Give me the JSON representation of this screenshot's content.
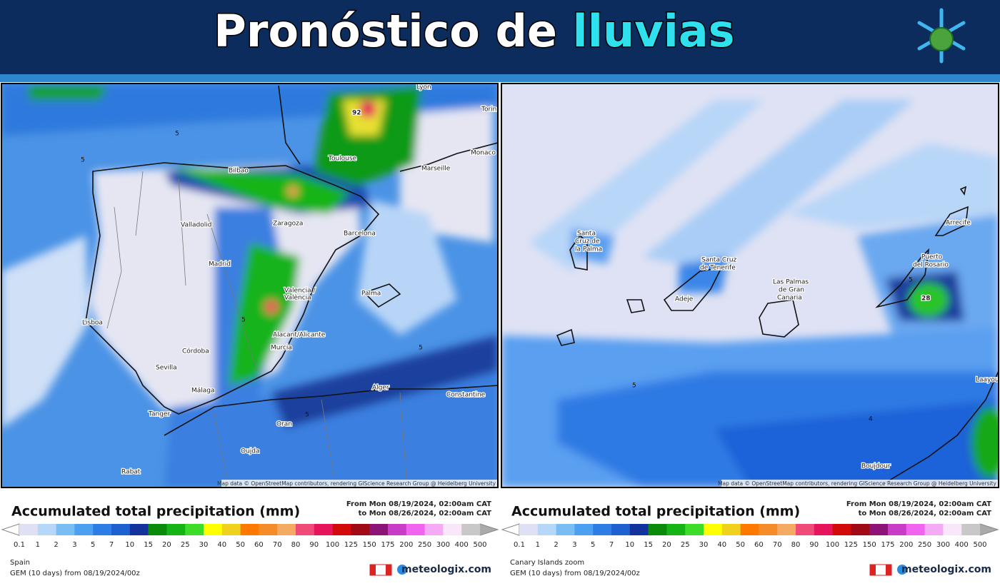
{
  "header": {
    "title": "Pronóstico de",
    "title_highlight": "lluvias"
  },
  "legend": {
    "title": "Accumulated total precipitation (mm)",
    "from": "From Mon 08/19/2024, 02:00am CAT",
    "to": "to Mon 08/26/2024, 02:00am CAT",
    "ticks": [
      0.1,
      1,
      2,
      3,
      5,
      7,
      10,
      15,
      20,
      25,
      30,
      40,
      50,
      60,
      70,
      80,
      90,
      100,
      125,
      150,
      175,
      200,
      250,
      300,
      400,
      500
    ],
    "colors": [
      "#e0e0f5",
      "#b4d7fa",
      "#78bef5",
      "#4ba0f0",
      "#2d7de6",
      "#1e5fd2",
      "#14329b",
      "#0a8c0a",
      "#14b414",
      "#3cdc28",
      "#ffff00",
      "#f0d21e",
      "#ff7800",
      "#f58c28",
      "#f5aa64",
      "#f04b78",
      "#e6145a",
      "#d20a0a",
      "#a00a14",
      "#8c1478",
      "#c83cc8",
      "#f064f0",
      "#f5aaf5",
      "#fae6fa",
      "#c8c8c8"
    ],
    "model": "GEM (10 days) from 08/19/2024/00z",
    "brand": "meteologix.com",
    "attribution": "Map data © OpenStreetMap contributors, rendering GIScience Research Group @ Heidelberg University"
  },
  "panels": [
    {
      "region": "Spain",
      "max_label": "92",
      "places": [
        "Lyon",
        "Torino",
        "Monaco",
        "Toulouse",
        "Marseille",
        "Bilbao",
        "Valladolid",
        "Zaragoza",
        "Barcelona",
        "Madrid",
        "Valencia /",
        "València",
        "Palma",
        "Lisboa",
        "Córdoba",
        "Sevilla",
        "Alacant/Alicante",
        "Murcia",
        "Málaga",
        "Tanger",
        "Alger",
        "Constantine",
        "Oran",
        "Oujda",
        "Rabat"
      ],
      "contours": [
        "5",
        "5",
        "5",
        "5",
        "5"
      ]
    },
    {
      "region": "Canary Islands zoom",
      "max_label": "28",
      "places": [
        "Santa",
        "Cruz de",
        "la Palma",
        "Santa Cruz",
        "de Tenerife",
        "Adeje",
        "Las Palmas",
        "de Gran",
        "Canaria",
        "Puerto",
        "del Rosario",
        "Arrecife",
        "Laayoune",
        "Boujdour"
      ],
      "contours": [
        "5",
        "5",
        "4"
      ]
    }
  ]
}
